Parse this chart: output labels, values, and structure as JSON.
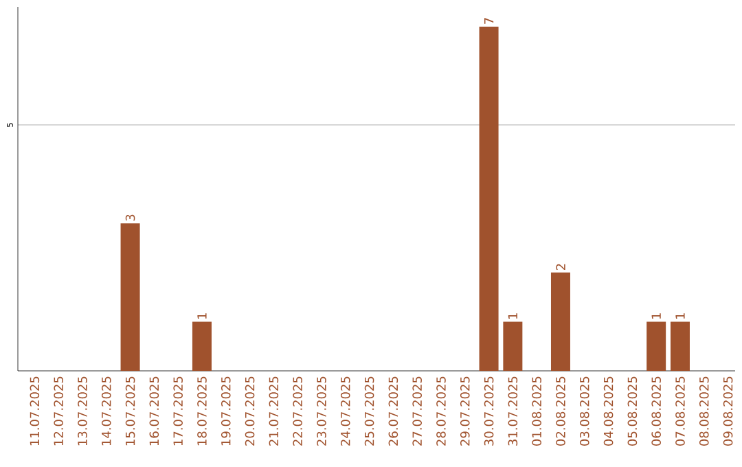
{
  "chart_data": {
    "type": "bar",
    "categories": [
      "11.07.2025",
      "12.07.2025",
      "13.07.2025",
      "14.07.2025",
      "15.07.2025",
      "16.07.2025",
      "17.07.2025",
      "18.07.2025",
      "19.07.2025",
      "20.07.2025",
      "21.07.2025",
      "22.07.2025",
      "23.07.2025",
      "24.07.2025",
      "25.07.2025",
      "26.07.2025",
      "27.07.2025",
      "28.07.2025",
      "29.07.2025",
      "30.07.2025",
      "31.07.2025",
      "01.08.2025",
      "02.08.2025",
      "03.08.2025",
      "04.08.2025",
      "05.08.2025",
      "06.08.2025",
      "07.08.2025",
      "08.08.2025",
      "09.08.2025"
    ],
    "values": [
      0,
      0,
      0,
      0,
      3,
      0,
      0,
      1,
      0,
      0,
      0,
      0,
      0,
      0,
      0,
      0,
      0,
      0,
      0,
      7,
      1,
      0,
      2,
      0,
      0,
      0,
      1,
      1,
      0,
      0
    ],
    "value_labels": [
      null,
      null,
      null,
      null,
      "3",
      null,
      null,
      "1",
      null,
      null,
      null,
      null,
      null,
      null,
      null,
      null,
      null,
      null,
      null,
      "7",
      "1",
      null,
      "2",
      null,
      null,
      null,
      "1",
      "1",
      null,
      null
    ],
    "color": "#a0522d",
    "ylim": [
      0,
      7.4
    ],
    "yticks": [
      5
    ],
    "grid": "y"
  }
}
